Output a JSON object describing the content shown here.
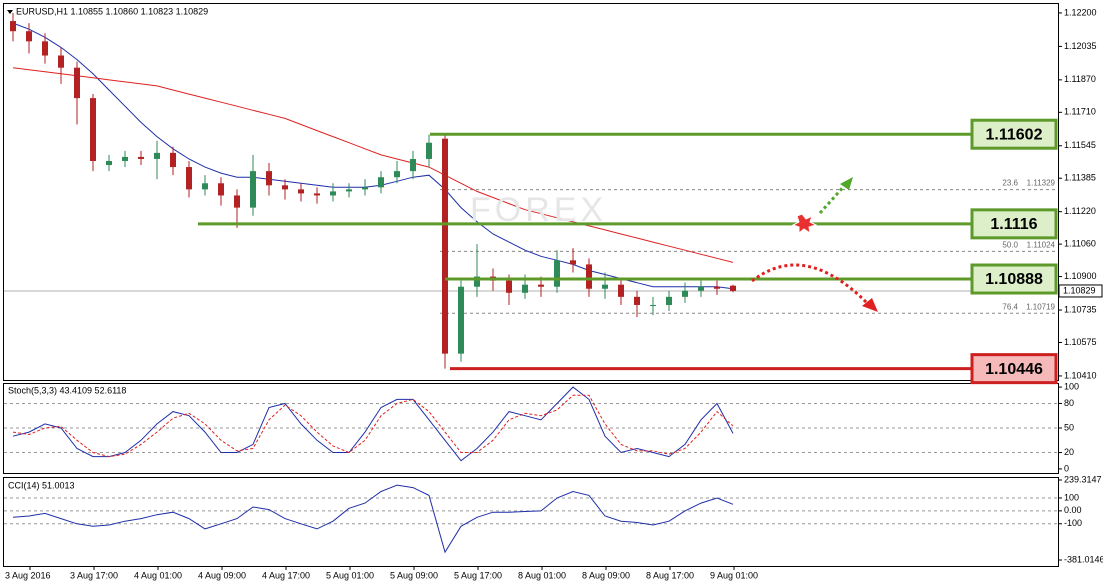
{
  "chart_data": {
    "type": "candlestick",
    "header": "EURUSD,H1  1.10855 1.10860 1.10823 1.10829",
    "watermark": "FOREX",
    "up_color": "#2e8b57",
    "down_color": "#b22222",
    "open": [
      1.1216,
      1.1211,
      1.1206,
      1.1199,
      1.1193,
      1.1178,
      1.1145,
      1.1147,
      1.1149,
      1.1148,
      1.1151,
      1.1144,
      1.1133,
      1.1136,
      1.113,
      1.1124,
      1.1142,
      1.1135,
      1.1133,
      1.1131,
      1.113,
      1.1132,
      1.1133,
      1.1134,
      1.1139,
      1.1142,
      1.1148,
      1.1158,
      1.1052,
      1.1085,
      1.109,
      1.1088,
      1.1082,
      1.1086,
      1.1085,
      1.1098,
      1.1096,
      1.1084,
      1.1086,
      1.108,
      1.1076,
      1.1076,
      1.108,
      1.1083,
      1.1085,
      1.10855
    ],
    "high": [
      1.122,
      1.1215,
      1.121,
      1.1203,
      1.1196,
      1.118,
      1.115,
      1.1152,
      1.1152,
      1.1157,
      1.1154,
      1.1147,
      1.114,
      1.1139,
      1.1133,
      1.115,
      1.1146,
      1.1138,
      1.1136,
      1.1134,
      1.1136,
      1.1136,
      1.1138,
      1.1142,
      1.1147,
      1.1152,
      1.116,
      1.116,
      1.1088,
      1.1106,
      1.1094,
      1.1091,
      1.1091,
      1.109,
      1.1103,
      1.1104,
      1.1099,
      1.1092,
      1.1089,
      1.1083,
      1.108,
      1.1083,
      1.1087,
      1.1088,
      1.1088,
      1.1086
    ],
    "low": [
      1.1206,
      1.12,
      1.1195,
      1.1185,
      1.1165,
      1.1142,
      1.1142,
      1.1144,
      1.1145,
      1.1138,
      1.114,
      1.1129,
      1.113,
      1.1125,
      1.1114,
      1.112,
      1.113,
      1.1128,
      1.1127,
      1.1126,
      1.1127,
      1.1129,
      1.113,
      1.1131,
      1.1136,
      1.1138,
      1.1144,
      1.10446,
      1.1048,
      1.108,
      1.1083,
      1.1076,
      1.1079,
      1.108,
      1.1082,
      1.1092,
      1.108,
      1.1079,
      1.1076,
      1.107,
      1.1071,
      1.1073,
      1.1077,
      1.108,
      1.1081,
      1.10823
    ],
    "close": [
      1.1211,
      1.1206,
      1.1199,
      1.1193,
      1.1178,
      1.1147,
      1.1147,
      1.1149,
      1.1148,
      1.1151,
      1.1144,
      1.1133,
      1.1136,
      1.113,
      1.1124,
      1.1142,
      1.1135,
      1.1133,
      1.1131,
      1.113,
      1.1132,
      1.1133,
      1.1134,
      1.1139,
      1.1142,
      1.1148,
      1.1156,
      1.1052,
      1.1085,
      1.109,
      1.1088,
      1.1082,
      1.1086,
      1.1085,
      1.1098,
      1.1096,
      1.1084,
      1.1086,
      1.108,
      1.1076,
      1.1076,
      1.108,
      1.1083,
      1.1085,
      1.1084,
      1.10829
    ],
    "moving_averages": [
      {
        "color": "#1f2fa8",
        "values": [
          1.1215,
          1.1212,
          1.1208,
          1.1203,
          1.1197,
          1.119,
          1.1182,
          1.1174,
          1.1166,
          1.1159,
          1.1153,
          1.1148,
          1.1144,
          1.1141,
          1.1139,
          1.1139,
          1.1138,
          1.1137,
          1.1136,
          1.1135,
          1.1134,
          1.1134,
          1.1134,
          1.1135,
          1.1137,
          1.1139,
          1.114,
          1.1133,
          1.1124,
          1.1117,
          1.1111,
          1.1107,
          1.1103,
          1.11,
          1.1098,
          1.1096,
          1.1093,
          1.1091,
          1.1089,
          1.1087,
          1.1085,
          1.1085,
          1.1085,
          1.1085,
          1.1085,
          1.1084
        ]
      },
      {
        "color": "#e02020",
        "values": [
          1.1193,
          1.1192,
          1.1191,
          1.119,
          1.1189,
          1.1188,
          1.1187,
          1.1186,
          1.1185,
          1.1184,
          1.1182,
          1.118,
          1.1178,
          1.1176,
          1.1174,
          1.1172,
          1.117,
          1.1168,
          1.1165,
          1.1162,
          1.1159,
          1.1156,
          1.1153,
          1.115,
          1.1148,
          1.1146,
          1.1144,
          1.114,
          1.1136,
          1.1132,
          1.1129,
          1.1126,
          1.1123,
          1.1121,
          1.1119,
          1.1117,
          1.1115,
          1.1113,
          1.1111,
          1.1109,
          1.1107,
          1.1105,
          1.1103,
          1.1101,
          1.1099,
          1.1097
        ]
      }
    ],
    "ylim": [
      1.1039,
      1.12249
    ],
    "yticks": [
      {
        "value": 1.122,
        "label": "1.12200"
      },
      1.12035,
      {
        "value": 1.1187,
        "label": "1.11870"
      },
      {
        "value": 1.1171,
        "label": "1.11710"
      },
      1.11545,
      1.11385,
      {
        "value": 1.1122,
        "label": "1.11220"
      },
      {
        "value": 1.1106,
        "label": "1.11060"
      },
      {
        "value": 1.109,
        "label": "1.10900"
      },
      1.10735,
      1.10575,
      {
        "value": 1.1041,
        "label": "1.10410"
      }
    ],
    "current_price": 1.10829,
    "levels": [
      {
        "value": 1.11602,
        "color": "#5e9a2a",
        "fill": "#dcefc9"
      },
      {
        "value": 1.1116,
        "color": "#5e9a2a",
        "fill": "#dcefc9"
      },
      {
        "value": 1.10888,
        "color": "#5e9a2a",
        "fill": "#dcefc9"
      },
      {
        "value": 1.10446,
        "color": "#cc1f1f",
        "fill": "#f6b9b9"
      }
    ],
    "fibonacci": [
      {
        "level": "23.6",
        "price": 1.11329
      },
      {
        "level": "50.0",
        "price": 1.11024
      },
      {
        "level": "76.4",
        "price": 1.10719
      }
    ],
    "time_labels": [
      "3 Aug 2016",
      "3 Aug 17:00",
      "4 Aug 01:00",
      "4 Aug 09:00",
      "4 Aug 17:00",
      "5 Aug 01:00",
      "5 Aug 09:00",
      "5 Aug 17:00",
      "8 Aug 01:00",
      "8 Aug 09:00",
      "8 Aug 17:00",
      "9 Aug 01:00"
    ],
    "stochastic": {
      "title": "Stoch(5,3,3) 43.4109 52.6118",
      "ylim": [
        -5,
        105
      ],
      "yticks": [
        100,
        80,
        50,
        20,
        0
      ],
      "main": {
        "color": "#1f2fa8",
        "values": [
          40,
          45,
          55,
          50,
          25,
          15,
          15,
          20,
          35,
          55,
          70,
          65,
          45,
          20,
          20,
          30,
          75,
          80,
          55,
          35,
          20,
          20,
          45,
          75,
          85,
          85,
          60,
          35,
          10,
          25,
          45,
          70,
          65,
          60,
          80,
          100,
          85,
          40,
          20,
          25,
          20,
          15,
          30,
          60,
          80,
          43.4109
        ]
      },
      "signal": {
        "color": "#e02020",
        "values": [
          45,
          42,
          50,
          52,
          35,
          20,
          15,
          18,
          30,
          45,
          62,
          68,
          55,
          35,
          22,
          25,
          60,
          78,
          65,
          45,
          28,
          20,
          35,
          65,
          80,
          85,
          70,
          45,
          20,
          20,
          35,
          60,
          68,
          65,
          72,
          90,
          90,
          55,
          30,
          22,
          22,
          18,
          25,
          45,
          70,
          52.6118
        ]
      }
    },
    "cci": {
      "title": "CCI(14) 51.0013",
      "ylim": [
        -381.0146,
        239.3147
      ],
      "yticks": [
        239.3147,
        100,
        {
          "value": 0,
          "label": "0.00"
        },
        -100,
        -381.0146
      ],
      "color": "#1f2fa8",
      "values": [
        -50,
        -40,
        -20,
        -60,
        -100,
        -120,
        -110,
        -80,
        -60,
        -30,
        -10,
        -60,
        -140,
        -100,
        -60,
        30,
        10,
        -60,
        -100,
        -140,
        -80,
        20,
        60,
        150,
        200,
        180,
        120,
        -320,
        -120,
        -50,
        -10,
        -10,
        -5,
        0,
        100,
        150,
        120,
        -40,
        -80,
        -90,
        -110,
        -80,
        0,
        60,
        100,
        51.0013
      ]
    }
  }
}
